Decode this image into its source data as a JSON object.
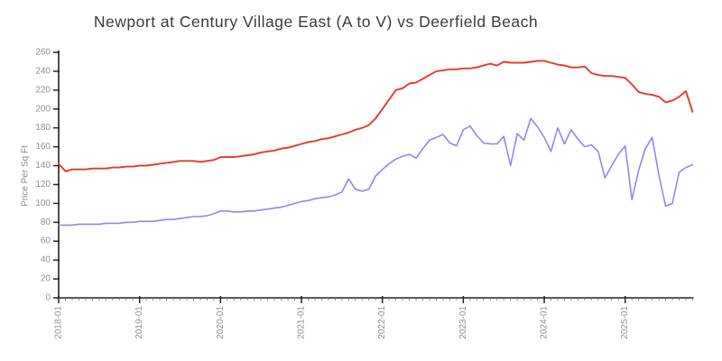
{
  "title": "Newport at Century Village East (A to V) vs Deerfield Beach",
  "colors": {
    "red_line": "#e8382d",
    "blue_line": "#8a8aec",
    "axis": "#222222",
    "tick_label": "#8f8f8f",
    "title_text": "#3b3b3b",
    "background": "#ffffff"
  },
  "chart_data": {
    "type": "line",
    "title": "Newport at Century Village East (A to V) vs Deerfield Beach",
    "xlabel": "",
    "ylabel": "Price Per Sq Ft",
    "style": "xkcd-sketch",
    "grid": false,
    "legend": "none",
    "x_start": "2018-01",
    "x_end": "2025-11",
    "x_frequency": "monthly",
    "x_tick_labels": [
      "2018-01",
      "2019-01",
      "2020-01",
      "2021-01",
      "2022-01",
      "2023-01",
      "2024-01",
      "2025-01"
    ],
    "x_tick_rotation": -90,
    "y_ticks": [
      0,
      20,
      40,
      60,
      80,
      100,
      120,
      140,
      160,
      180,
      200,
      220,
      240,
      260
    ],
    "ylim": [
      0,
      260
    ],
    "series": [
      {
        "name": "Deerfield Beach",
        "color": "#e8382d",
        "values": [
          142,
          134,
          136,
          136,
          136,
          137,
          137,
          137,
          138,
          138,
          139,
          139,
          140,
          140,
          141,
          142,
          143,
          144,
          145,
          145,
          145,
          144,
          145,
          146,
          149,
          149,
          149,
          150,
          151,
          152,
          154,
          155,
          156,
          158,
          159,
          161,
          163,
          165,
          166,
          168,
          169,
          171,
          173,
          175,
          178,
          180,
          183,
          190,
          200,
          210,
          220,
          222,
          227,
          228,
          232,
          236,
          240,
          241,
          242,
          242,
          243,
          243,
          244,
          246,
          248,
          246,
          250,
          249,
          249,
          249,
          250,
          251,
          251,
          249,
          247,
          246,
          244,
          244,
          245,
          238,
          236,
          235,
          235,
          234,
          233,
          226,
          218,
          216,
          215,
          213,
          207,
          209,
          213,
          219,
          197
        ]
      },
      {
        "name": "Newport at Century Village East (A to V)",
        "color": "#8a8aec",
        "values": [
          77,
          77,
          77,
          78,
          78,
          78,
          78,
          79,
          79,
          79,
          80,
          80,
          81,
          81,
          81,
          82,
          83,
          83,
          84,
          85,
          86,
          86,
          87,
          89,
          92,
          92,
          91,
          91,
          92,
          92,
          93,
          94,
          95,
          96,
          98,
          100,
          102,
          103,
          105,
          106,
          107,
          109,
          112,
          126,
          115,
          113,
          115,
          129,
          136,
          142,
          147,
          150,
          152,
          148,
          158,
          167,
          170,
          173,
          164,
          161,
          178,
          182,
          172,
          164,
          163,
          163,
          171,
          140,
          174,
          167,
          190,
          181,
          170,
          155,
          180,
          163,
          178,
          168,
          160,
          162,
          155,
          127,
          140,
          152,
          161,
          104,
          135,
          158,
          170,
          130,
          97,
          100,
          133,
          138,
          141
        ]
      }
    ]
  }
}
